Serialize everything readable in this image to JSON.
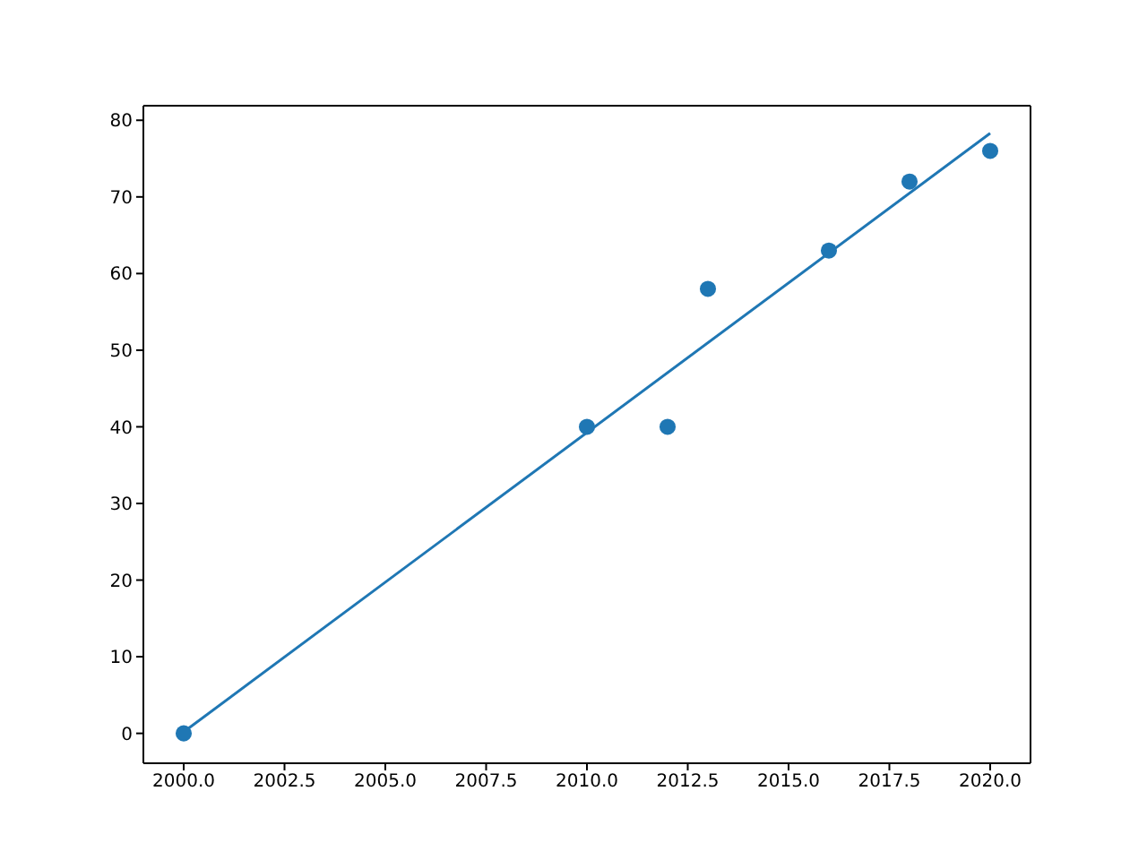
{
  "chart_data": {
    "type": "scatter",
    "marker": "circle",
    "xlim": [
      1999,
      2021
    ],
    "ylim": [
      -3.9,
      81.9
    ],
    "xticks": [
      {
        "value": 2000,
        "label": "2000.0"
      },
      {
        "value": 2002.5,
        "label": "2002.5"
      },
      {
        "value": 2005,
        "label": "2005.0"
      },
      {
        "value": 2007.5,
        "label": "2007.5"
      },
      {
        "value": 2010,
        "label": "2010.0"
      },
      {
        "value": 2012.5,
        "label": "2012.5"
      },
      {
        "value": 2015,
        "label": "2015.0"
      },
      {
        "value": 2017.5,
        "label": "2017.5"
      },
      {
        "value": 2020,
        "label": "2020.0"
      }
    ],
    "yticks": [
      0,
      10,
      20,
      30,
      40,
      50,
      60,
      70,
      80
    ],
    "series": [
      {
        "color": "#1f77b4",
        "x": [
          2000,
          2010,
          2012,
          2013,
          2016,
          2018,
          2020
        ],
        "values": [
          0,
          40,
          40,
          58,
          63,
          72,
          76
        ]
      },
      {
        "type": "line",
        "color": "#1f77b4",
        "marker": "none",
        "line_style": "solid",
        "x": [
          2000,
          2020
        ],
        "values": [
          0.2,
          78.3
        ]
      }
    ]
  }
}
